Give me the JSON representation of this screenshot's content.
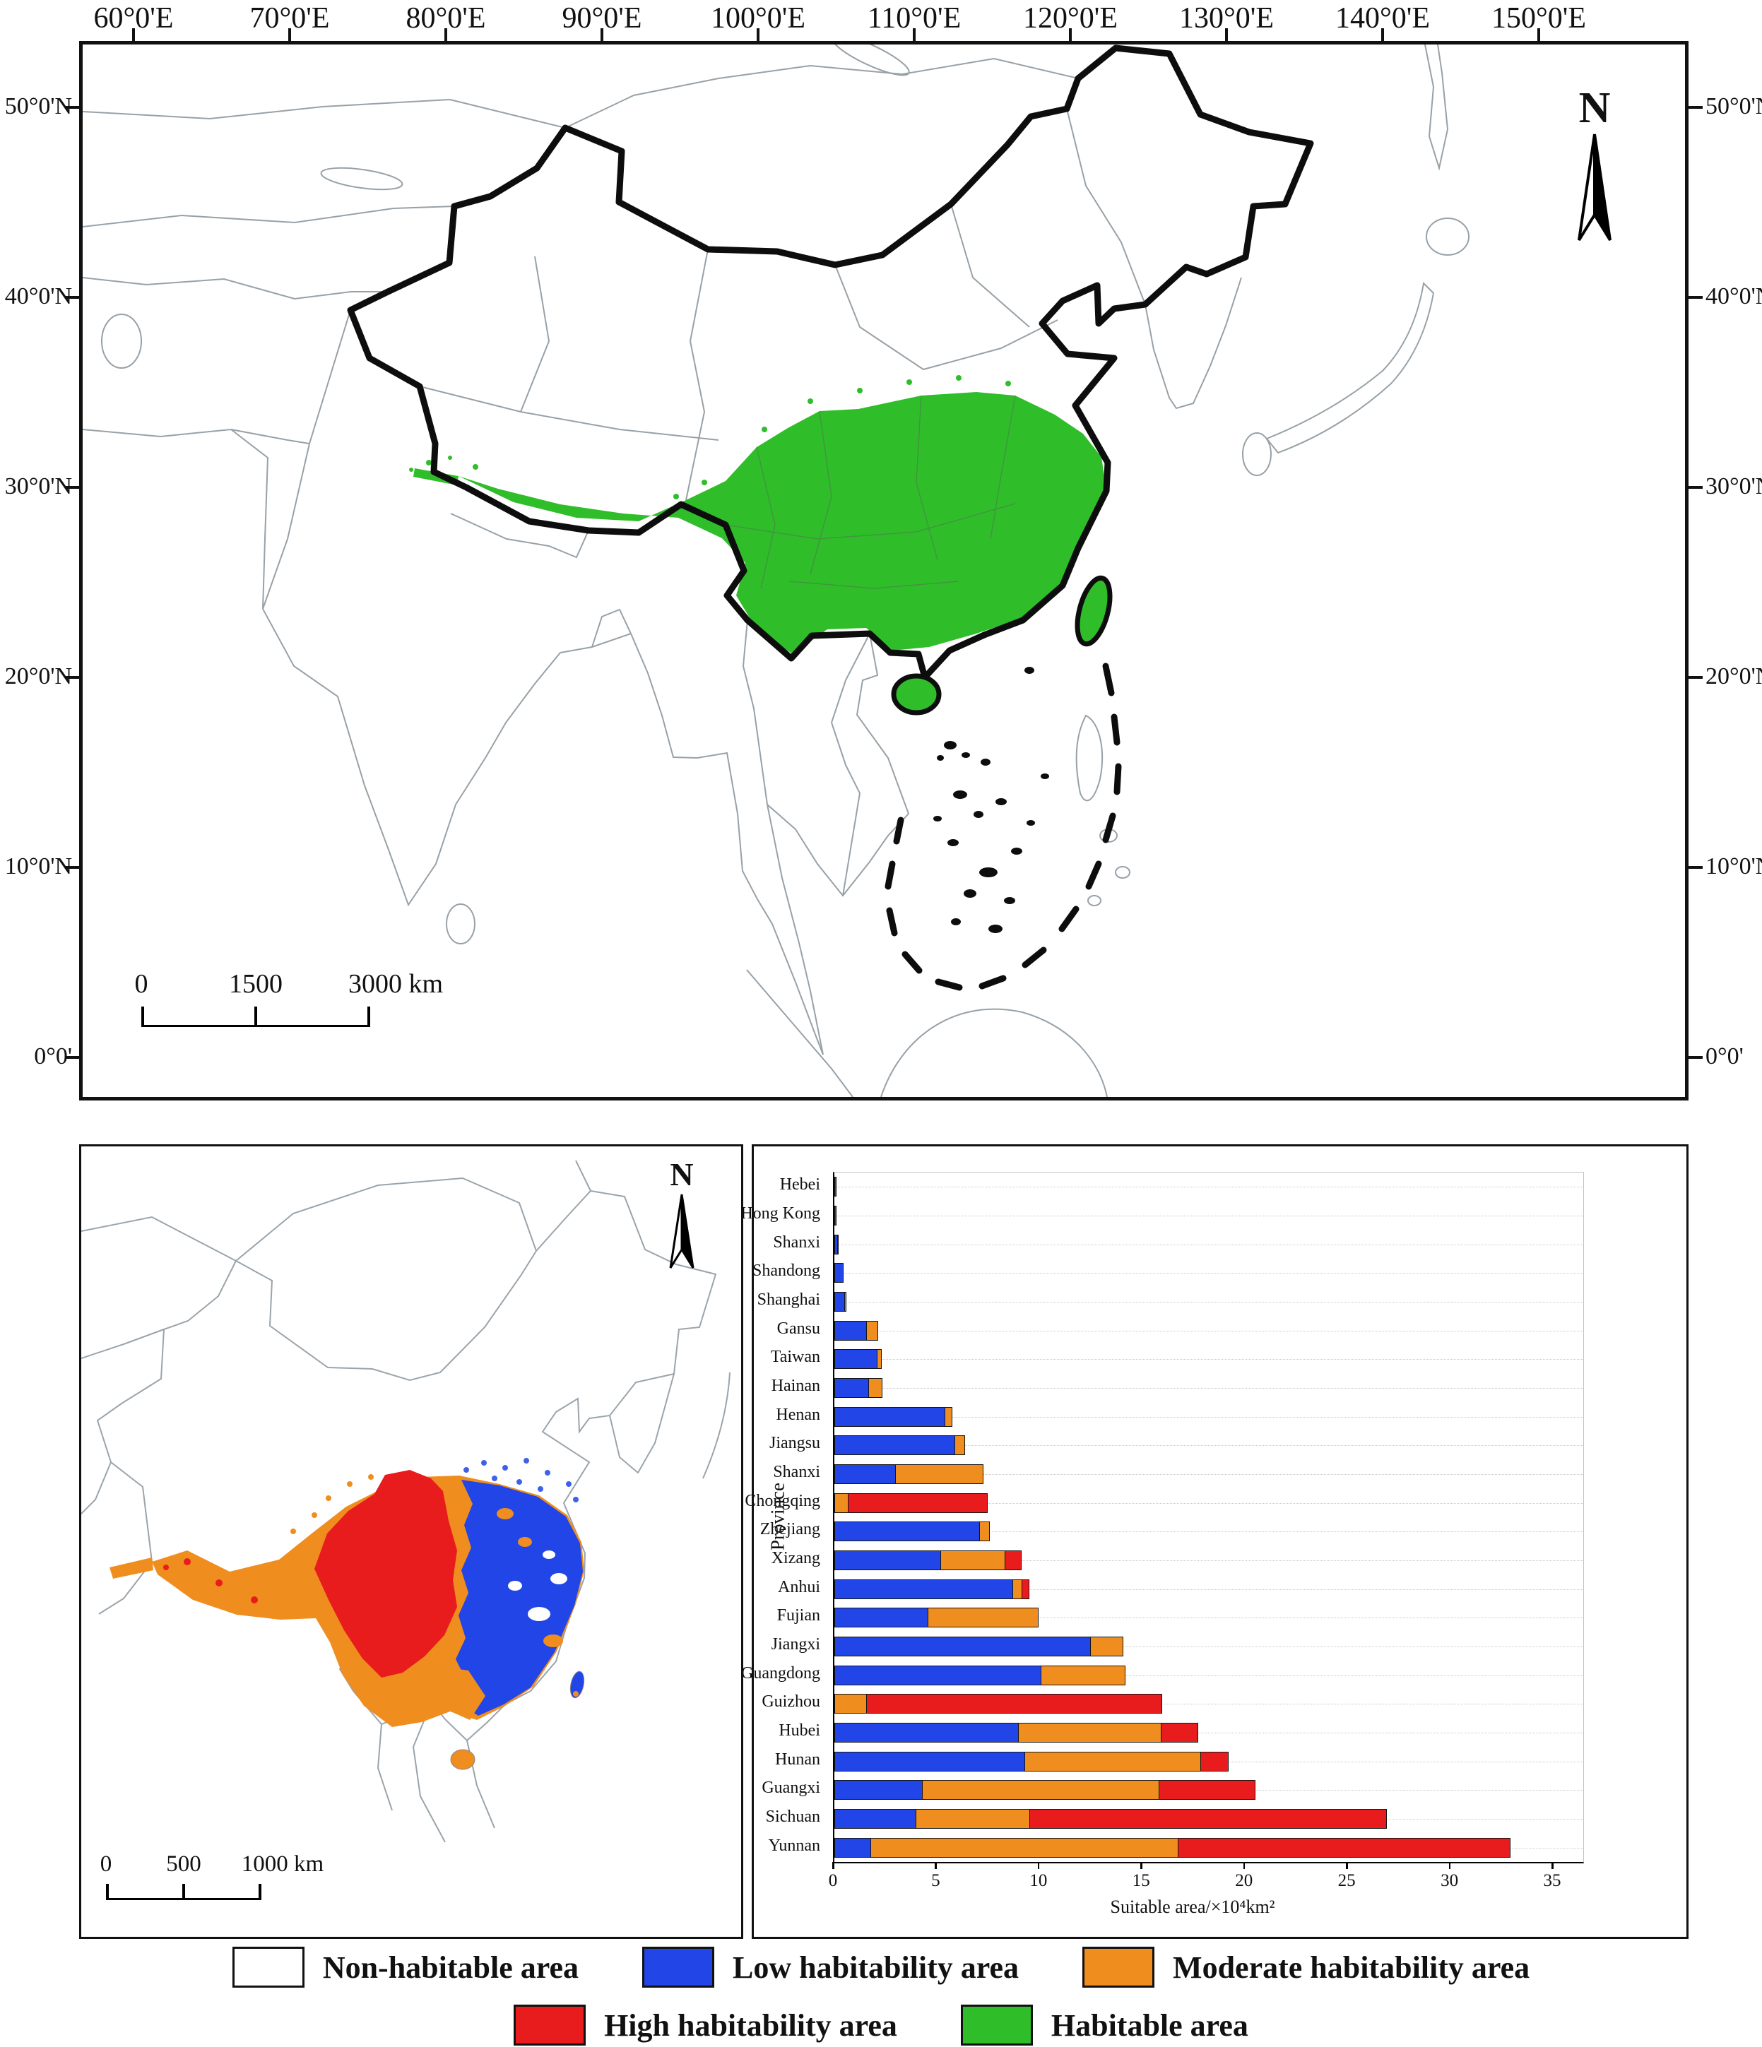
{
  "figure": {
    "top_map": {
      "north_label": "N",
      "lon_labels": [
        "60°0'E",
        "70°0'E",
        "80°0'E",
        "90°0'E",
        "100°0'E",
        "110°0'E",
        "120°0'E",
        "130°0'E",
        "140°0'E",
        "150°0'E"
      ],
      "lat_labels": [
        "50°0'N",
        "40°0'N",
        "30°0'N",
        "20°0'N",
        "10°0'N",
        "0°0'"
      ],
      "scalebar_labels": [
        "0",
        "1500",
        "3000 km"
      ],
      "habitable_color": "#2fbe2a"
    },
    "inset_map": {
      "north_label": "N",
      "scalebar_labels": [
        "0",
        "500",
        "1000 km"
      ]
    },
    "legend": {
      "rows": [
        [
          {
            "label": "Non-habitable area",
            "color": "#ffffff"
          },
          {
            "label": "Low habitability area",
            "color": "#2145e6"
          },
          {
            "label": "Moderate habitability area",
            "color": "#ef8d1f"
          }
        ],
        [
          {
            "label": "High habitability area",
            "color": "#e81c1c"
          },
          {
            "label": "Habitable area",
            "color": "#2fbe2a"
          }
        ]
      ]
    }
  },
  "chart_data": {
    "type": "bar",
    "orientation": "horizontal-stacked",
    "ylabel": "Province",
    "xlabel": "Suitable area/×10⁴km²",
    "xlim": [
      0,
      35
    ],
    "xticks": [
      0,
      5,
      10,
      15,
      20,
      25,
      30,
      35
    ],
    "grid": "dotted-horizontal",
    "categories": [
      "Hebei",
      "Hong Kong",
      "Shanxi",
      "Shandong",
      "Shanghai",
      "Gansu",
      "Taiwan",
      "Hainan",
      "Henan",
      "Jiangsu",
      "Shanxi",
      "Chongqing",
      "Zhejiang",
      "Xizang",
      "Anhui",
      "Fujian",
      "Jiangxi",
      "Guangdong",
      "Guizhou",
      "Hubei",
      "Hunan",
      "Guangxi",
      "Sichuan",
      "Yunnan"
    ],
    "series": [
      {
        "name": "Low habitability area",
        "color": "#2145e6",
        "values": [
          0.1,
          0.12,
          0.2,
          0.45,
          0.55,
          1.6,
          2.1,
          1.7,
          5.4,
          5.9,
          3.0,
          0,
          7.1,
          5.2,
          8.7,
          4.6,
          12.5,
          10.1,
          0,
          9.0,
          9.3,
          4.3,
          4.0,
          1.8
        ]
      },
      {
        "name": "Moderate habitability area",
        "color": "#ef8d1f",
        "values": [
          0,
          0,
          0.05,
          0,
          0.1,
          0.6,
          0.25,
          0.7,
          0.4,
          0.5,
          4.3,
          0.7,
          0.5,
          3.2,
          0.5,
          5.4,
          1.6,
          4.1,
          1.6,
          7.0,
          8.6,
          11.6,
          5.6,
          15.0
        ]
      },
      {
        "name": "High habitability area",
        "color": "#e81c1c",
        "values": [
          0,
          0,
          0,
          0,
          0,
          0,
          0,
          0,
          0,
          0,
          0,
          6.8,
          0,
          0.8,
          0.4,
          0,
          0,
          0,
          14.4,
          1.8,
          1.4,
          4.7,
          17.4,
          16.2
        ]
      }
    ]
  }
}
